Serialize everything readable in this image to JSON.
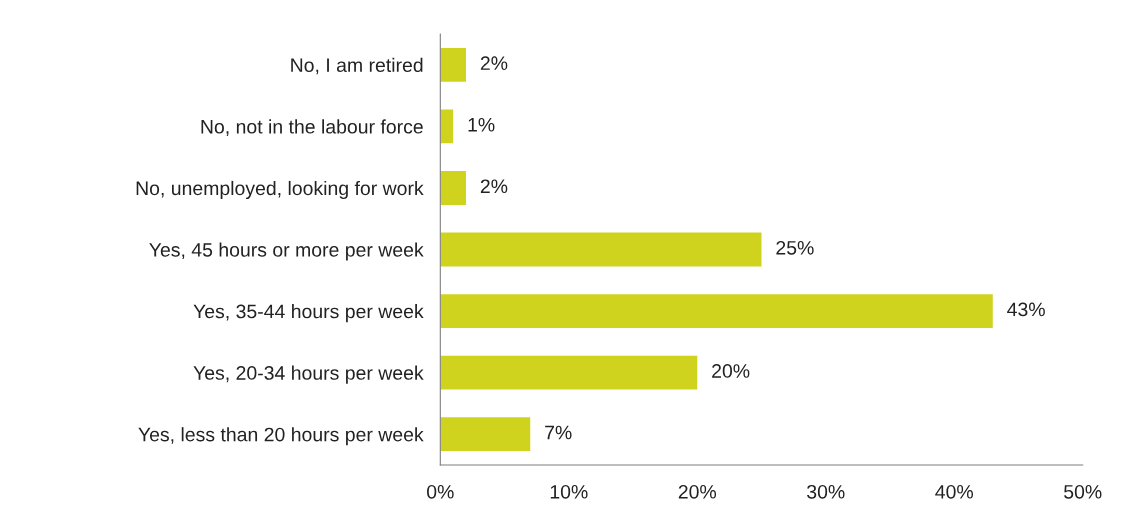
{
  "chart_data": {
    "type": "bar",
    "orientation": "horizontal",
    "categories": [
      "No, I am retired",
      "No, not in the labour force",
      "No, unemployed, looking for work",
      "Yes, 45 hours or more per week",
      "Yes, 35-44 hours per week",
      "Yes, 20-34 hours per week",
      "Yes, less than 20 hours per week"
    ],
    "values": [
      2,
      1,
      2,
      25,
      43,
      20,
      7
    ],
    "value_labels": [
      "2%",
      "1%",
      "2%",
      "25%",
      "43%",
      "20%",
      "7%"
    ],
    "color": "#d0d31e",
    "xlim": [
      0,
      50
    ],
    "xticks": [
      {
        "value": 0,
        "label": "0%"
      },
      {
        "value": 10,
        "label": "10%"
      },
      {
        "value": 20,
        "label": "20%"
      },
      {
        "value": 30,
        "label": "30%"
      },
      {
        "value": 40,
        "label": "40%"
      },
      {
        "value": 50,
        "label": "50%"
      }
    ],
    "grid": false,
    "legend": false
  }
}
